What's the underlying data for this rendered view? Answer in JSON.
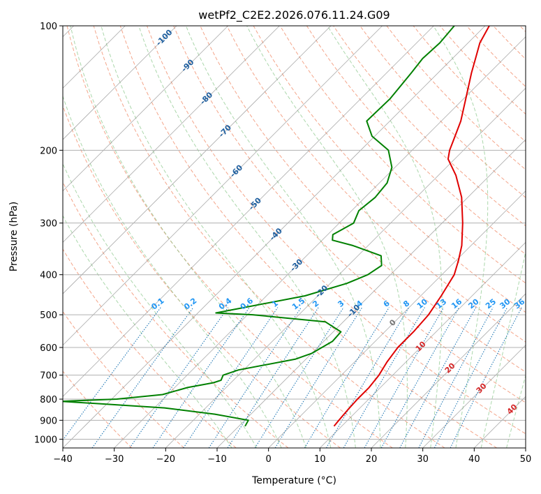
{
  "chart_data": {
    "type": "line",
    "subtype": "skew-T log-p diagram",
    "title": "wetPf2_C2E2.2026.076.11.24.G09",
    "xlabel": "Temperature (°C)",
    "ylabel": "Pressure (hPa)",
    "xlim": [
      -40,
      50
    ],
    "ylim": [
      1050,
      100
    ],
    "y_scale": "log",
    "grid": true,
    "x_ticks": [
      "−40",
      "−30",
      "−20",
      "−10",
      "0",
      "10",
      "20",
      "30",
      "40",
      "50"
    ],
    "x_tick_values": [
      -40,
      -30,
      -20,
      -10,
      0,
      10,
      20,
      30,
      40,
      50
    ],
    "y_ticks": [
      "100",
      "200",
      "300",
      "400",
      "500",
      "600",
      "700",
      "800",
      "900",
      "1000"
    ],
    "y_tick_values": [
      100,
      200,
      300,
      400,
      500,
      600,
      700,
      800,
      900,
      1000
    ],
    "series": [
      {
        "role": "temperature",
        "color": "#e00000",
        "points": [
          [
            930,
            8.5
          ],
          [
            900,
            8.3
          ],
          [
            850,
            8.0
          ],
          [
            800,
            7.8
          ],
          [
            750,
            7.8
          ],
          [
            700,
            7.3
          ],
          [
            650,
            6.3
          ],
          [
            600,
            5.6
          ],
          [
            550,
            5.6
          ],
          [
            500,
            5.2
          ],
          [
            450,
            4.0
          ],
          [
            400,
            2.4
          ],
          [
            370,
            0.5
          ],
          [
            340,
            -1.8
          ],
          [
            300,
            -6
          ],
          [
            260,
            -11.2
          ],
          [
            230,
            -16.6
          ],
          [
            210,
            -21.3
          ],
          [
            200,
            -22.7
          ],
          [
            190,
            -23.8
          ],
          [
            170,
            -26.2
          ],
          [
            150,
            -29.6
          ],
          [
            130,
            -33.5
          ],
          [
            120,
            -35.5
          ],
          [
            110,
            -37.7
          ],
          [
            100,
            -39.2
          ]
        ]
      },
      {
        "role": "dewpoint",
        "color": "#008000",
        "points": [
          [
            930,
            -8.8
          ],
          [
            900,
            -9.3
          ],
          [
            870,
            -17
          ],
          [
            840,
            -28
          ],
          [
            820,
            -42
          ],
          [
            810,
            -49.5
          ],
          [
            800,
            -39
          ],
          [
            780,
            -31
          ],
          [
            750,
            -27.5
          ],
          [
            730,
            -23.4
          ],
          [
            720,
            -22.4
          ],
          [
            700,
            -23
          ],
          [
            680,
            -21
          ],
          [
            640,
            -12
          ],
          [
            620,
            -10
          ],
          [
            580,
            -8.3
          ],
          [
            550,
            -8.5
          ],
          [
            520,
            -13.5
          ],
          [
            500,
            -29
          ],
          [
            495,
            -36.5
          ],
          [
            480,
            -32
          ],
          [
            450,
            -22.5
          ],
          [
            420,
            -16.8
          ],
          [
            400,
            -14.4
          ],
          [
            380,
            -13.5
          ],
          [
            360,
            -15.5
          ],
          [
            340,
            -23
          ],
          [
            330,
            -28
          ],
          [
            320,
            -29
          ],
          [
            300,
            -27.2
          ],
          [
            280,
            -28.6
          ],
          [
            260,
            -28
          ],
          [
            240,
            -28.5
          ],
          [
            220,
            -30.6
          ],
          [
            200,
            -34.6
          ],
          [
            185,
            -40.5
          ],
          [
            170,
            -44.5
          ],
          [
            150,
            -44.3
          ],
          [
            130,
            -45.2
          ],
          [
            120,
            -45.8
          ],
          [
            110,
            -45.5
          ],
          [
            100,
            -46
          ]
        ]
      }
    ],
    "annotations": {
      "isotherms_deg_c": [
        -100,
        -90,
        -80,
        -70,
        -60,
        -50,
        -40,
        -30,
        -20,
        -10
      ],
      "mixing_ratio_g_per_kg": [
        "0.1",
        "0.2",
        "0.4",
        "0.6",
        "1",
        "1.5",
        "2",
        "3",
        "4",
        "6",
        "8",
        "10",
        "13",
        "16",
        "20",
        "25",
        "30",
        "36"
      ],
      "moist_adiabat_labels": [
        "0",
        "10",
        "20",
        "30",
        "40"
      ]
    }
  },
  "colors": {
    "temperature": "#e00000",
    "dewpoint": "#008000",
    "dry_adiabat": "#f4a58a",
    "moist_adiabat": "#8fca8f",
    "mixing_ratio": "#1f77b4",
    "isotherm": "#888888",
    "label_isotherm": "#1f5f9f",
    "label_mixing": "#2196f3",
    "label_moist": "#d62728"
  }
}
